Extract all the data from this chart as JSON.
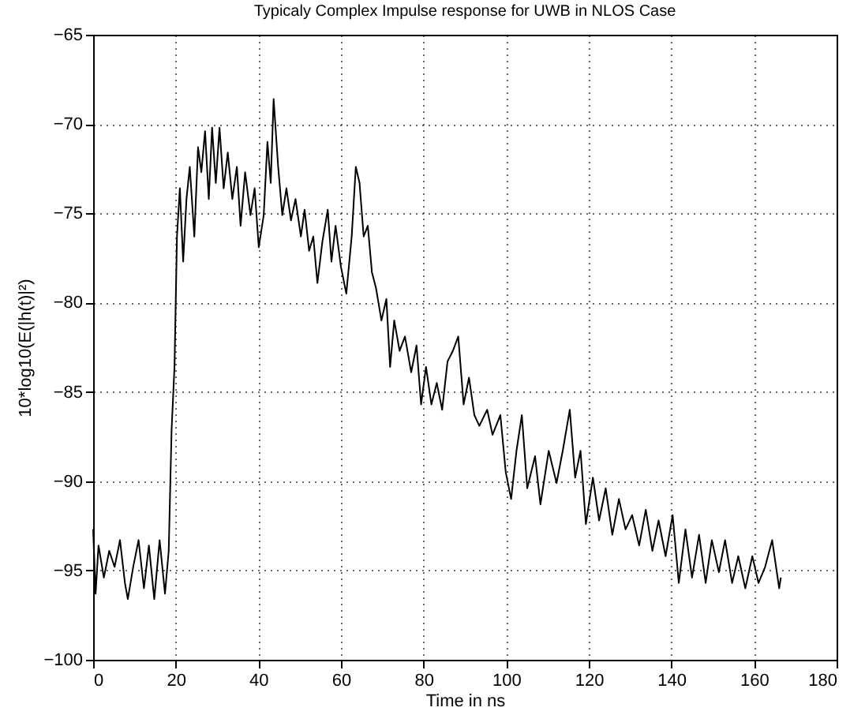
{
  "chart_data": {
    "type": "line",
    "title": "Typicaly Complex Impulse response for UWB in NLOS Case",
    "xlabel": "Time in ns",
    "ylabel": "10*log10(E(|h(t)|²)",
    "xlim": [
      0,
      180
    ],
    "xticks": [
      0,
      20,
      40,
      60,
      80,
      100,
      120,
      140,
      160,
      180
    ],
    "ylim": [
      -100,
      -65
    ],
    "yticks": [
      -100,
      -95,
      -90,
      -85,
      -80,
      -75,
      -70,
      -65
    ],
    "grid": true,
    "line_style": "solid",
    "marker": "none",
    "series": [
      {
        "color": "#000000",
        "x": [
          0,
          0.6,
          1.3,
          2.6,
          3.9,
          5.2,
          6.5,
          7.7,
          8.4,
          9.7,
          11,
          12.3,
          13.5,
          14.8,
          16.1,
          17.4,
          18.3,
          19,
          19.7,
          20.3,
          21,
          21.8,
          22.6,
          23.4,
          24.5,
          25.4,
          26.2,
          27.1,
          28,
          28.8,
          29.7,
          30.6,
          31.6,
          32.6,
          33.7,
          34.8,
          35.7,
          36.8,
          38.1,
          39.1,
          40.1,
          41.3,
          42.2,
          43,
          43.7,
          44.8,
          45.8,
          46.8,
          47.9,
          49,
          50.3,
          51.2,
          52.3,
          53.3,
          54.3,
          55.5,
          56.8,
          57.7,
          58.7,
          60,
          61.3,
          62.6,
          63.6,
          64.5,
          65.5,
          66.5,
          67.5,
          68.5,
          69.8,
          71,
          71.9,
          72.9,
          74.2,
          75.5,
          77,
          78.3,
          79.4,
          80.6,
          81.9,
          83.2,
          84.5,
          85.8,
          87.1,
          88.4,
          89.7,
          91,
          92.3,
          93.5,
          95.4,
          96.7,
          98.6,
          99.9,
          101.2,
          102.5,
          103.8,
          105.1,
          107,
          108.3,
          110.3,
          112.2,
          113.7,
          115.4,
          116.7,
          118,
          119.3,
          121,
          122.5,
          124.1,
          125.7,
          127.3,
          128.9,
          130.5,
          132.2,
          133.8,
          135.4,
          136.9,
          138.6,
          140.3,
          141.8,
          143.4,
          145,
          146.7,
          148.3,
          149.8,
          151.5,
          153,
          154.7,
          156.2,
          157.9,
          159.6,
          161.1,
          162.7,
          164.4,
          166.1,
          166.5
        ],
        "values": [
          -92.7,
          -96.3,
          -93.6,
          -95.4,
          -93.9,
          -94.8,
          -93.3,
          -95.7,
          -96.6,
          -94.8,
          -93.3,
          -96,
          -93.6,
          -96.6,
          -93.3,
          -96.3,
          -93.9,
          -87.1,
          -83.6,
          -76.3,
          -73.6,
          -77.7,
          -74.2,
          -72.4,
          -76.3,
          -71.3,
          -72.7,
          -70.4,
          -74.2,
          -70.2,
          -73.3,
          -70.2,
          -73.6,
          -71.6,
          -74.2,
          -72.4,
          -75.7,
          -72.7,
          -75.1,
          -73.6,
          -76.9,
          -75.1,
          -71,
          -73.3,
          -68.6,
          -72.4,
          -75.1,
          -73.6,
          -75.4,
          -74.2,
          -76.3,
          -74.8,
          -77.1,
          -76.3,
          -78.9,
          -76.6,
          -74.8,
          -77.7,
          -75.7,
          -78,
          -79.5,
          -76.3,
          -72.4,
          -73.3,
          -76.3,
          -75.7,
          -78.3,
          -79.2,
          -81,
          -79.8,
          -83.6,
          -81,
          -82.7,
          -81.9,
          -83.9,
          -82.4,
          -85.7,
          -83.6,
          -85.7,
          -84.5,
          -86,
          -83.3,
          -82.7,
          -81.9,
          -85.7,
          -84.2,
          -86.3,
          -86.9,
          -86,
          -87.4,
          -86.3,
          -89.5,
          -91,
          -88.3,
          -86.3,
          -90.4,
          -88.6,
          -91.3,
          -88.3,
          -90.1,
          -88.3,
          -86,
          -89.8,
          -88.3,
          -92.4,
          -89.8,
          -92.2,
          -90.4,
          -93,
          -91,
          -92.7,
          -91.9,
          -93.6,
          -91.6,
          -93.9,
          -92.2,
          -94.2,
          -91.9,
          -95.7,
          -92.7,
          -95.4,
          -93,
          -95.7,
          -93.3,
          -95.1,
          -93.3,
          -95.7,
          -94.2,
          -96,
          -94.2,
          -95.7,
          -94.8,
          -93.3,
          -96,
          -95.4
        ]
      }
    ]
  }
}
